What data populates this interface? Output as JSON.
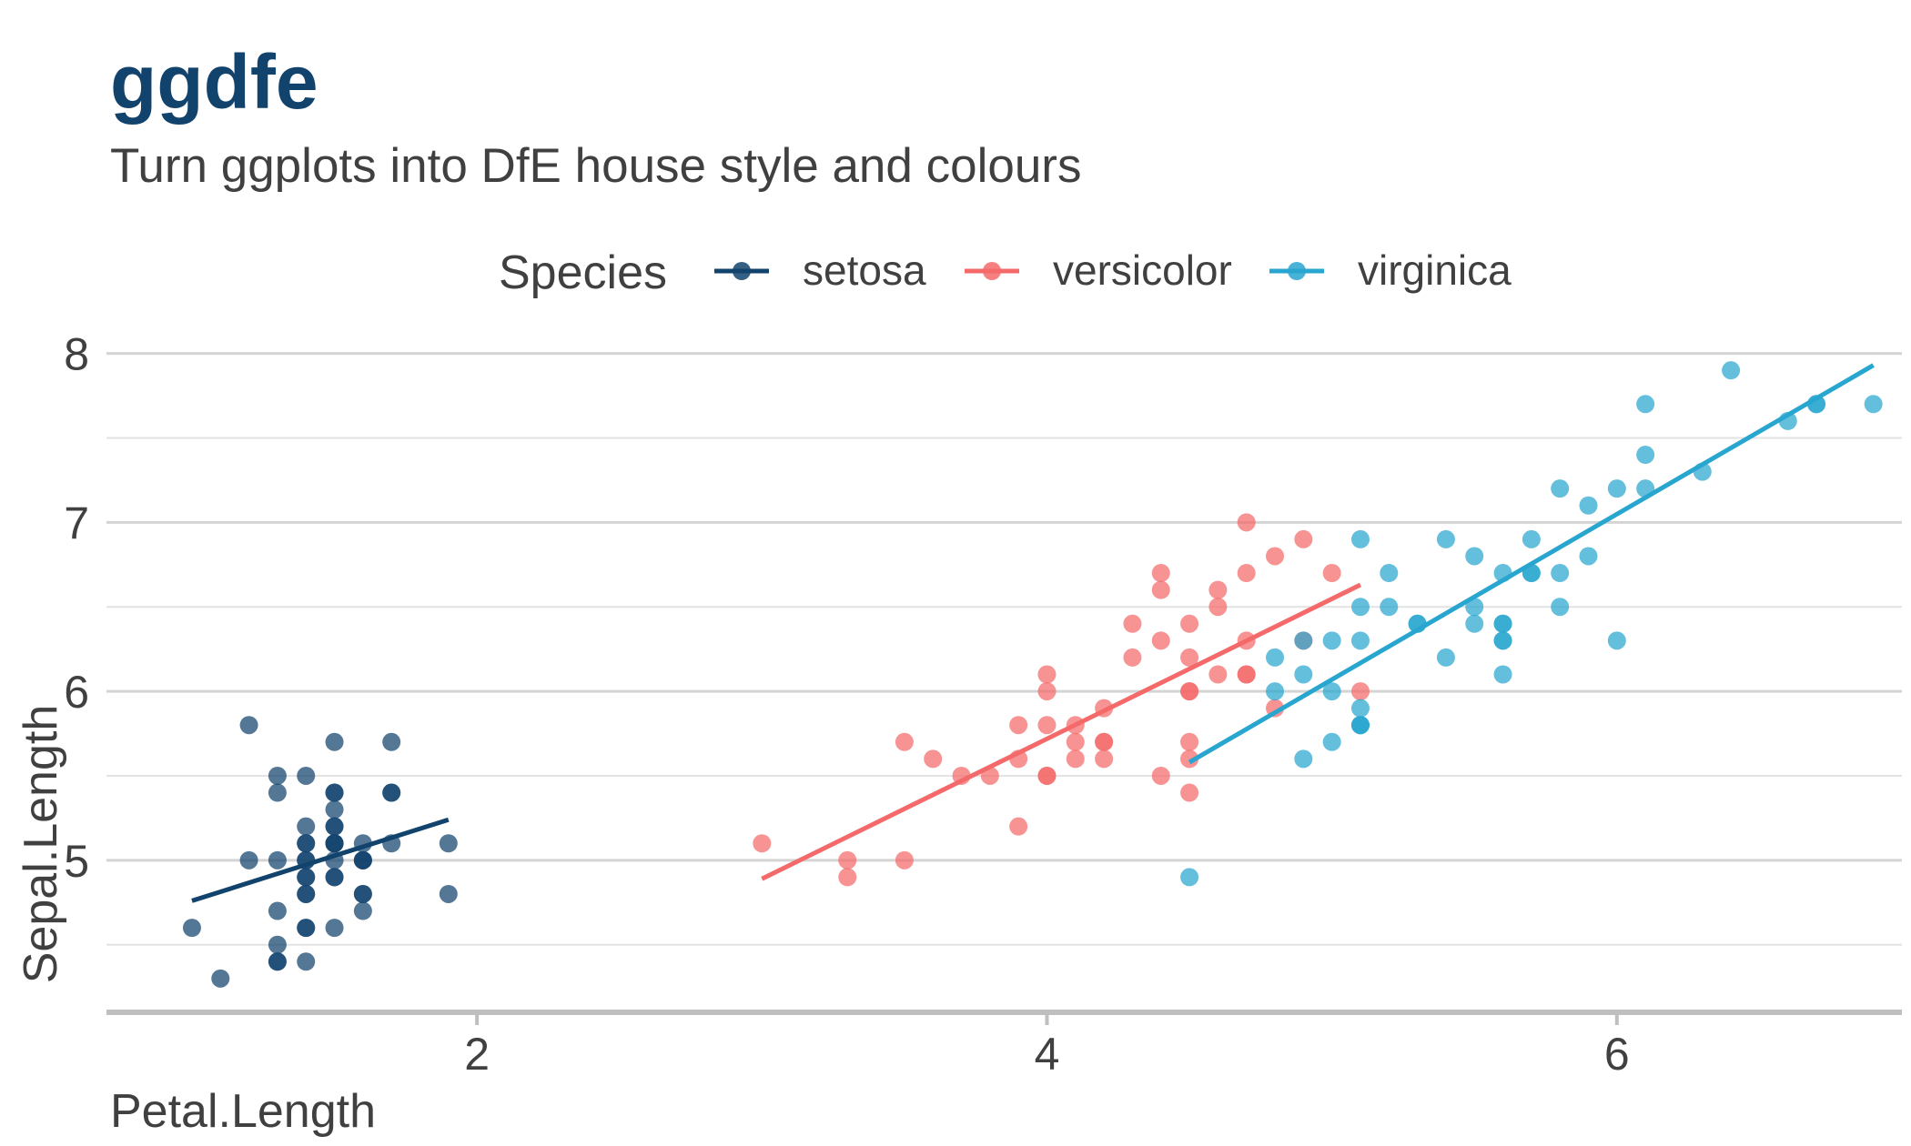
{
  "title": "ggdfe",
  "subtitle": "Turn ggplots into DfE house style and colours",
  "chart_data": {
    "type": "scatter",
    "xlabel": "Petal.Length",
    "ylabel": "Sepal.Length",
    "xlim": [
      0.7,
      7.0
    ],
    "ylim": [
      4.1,
      8.1
    ],
    "x_ticks": [
      2,
      4,
      6
    ],
    "y_ticks": [
      5,
      6,
      7,
      8
    ],
    "grid": "horizontal major and minor",
    "legend": {
      "title": "Species",
      "position": "top"
    },
    "trend_lines": "linear fit per species",
    "series": [
      {
        "name": "setosa",
        "color": "#12436d",
        "points": [
          [
            1.4,
            5.1
          ],
          [
            1.4,
            4.9
          ],
          [
            1.3,
            4.7
          ],
          [
            1.5,
            4.6
          ],
          [
            1.4,
            5.0
          ],
          [
            1.7,
            5.4
          ],
          [
            1.4,
            4.6
          ],
          [
            1.5,
            5.0
          ],
          [
            1.4,
            4.4
          ],
          [
            1.5,
            4.9
          ],
          [
            1.5,
            5.4
          ],
          [
            1.6,
            4.8
          ],
          [
            1.4,
            4.8
          ],
          [
            1.1,
            4.3
          ],
          [
            1.2,
            5.8
          ],
          [
            1.5,
            5.7
          ],
          [
            1.3,
            5.4
          ],
          [
            1.4,
            5.1
          ],
          [
            1.7,
            5.7
          ],
          [
            1.5,
            5.1
          ],
          [
            1.7,
            5.4
          ],
          [
            1.5,
            5.1
          ],
          [
            1.0,
            4.6
          ],
          [
            1.7,
            5.1
          ],
          [
            1.9,
            4.8
          ],
          [
            1.6,
            5.0
          ],
          [
            1.6,
            5.0
          ],
          [
            1.5,
            5.2
          ],
          [
            1.4,
            5.2
          ],
          [
            1.6,
            4.7
          ],
          [
            1.6,
            4.8
          ],
          [
            1.5,
            5.4
          ],
          [
            1.5,
            5.2
          ],
          [
            1.4,
            5.5
          ],
          [
            1.5,
            4.9
          ],
          [
            1.2,
            5.0
          ],
          [
            1.3,
            5.5
          ],
          [
            1.4,
            4.9
          ],
          [
            1.3,
            4.4
          ],
          [
            1.5,
            5.1
          ],
          [
            1.3,
            5.0
          ],
          [
            1.3,
            4.5
          ],
          [
            1.3,
            4.4
          ],
          [
            1.6,
            5.0
          ],
          [
            1.9,
            5.1
          ],
          [
            1.4,
            4.8
          ],
          [
            1.6,
            5.1
          ],
          [
            1.4,
            4.6
          ],
          [
            1.5,
            5.3
          ],
          [
            1.4,
            5.0
          ]
        ],
        "fit": [
          [
            1.0,
            4.76
          ],
          [
            1.9,
            5.24
          ]
        ]
      },
      {
        "name": "versicolor",
        "color": "#f46a6a",
        "points": [
          [
            4.7,
            7.0
          ],
          [
            4.5,
            6.4
          ],
          [
            4.9,
            6.9
          ],
          [
            4.0,
            5.5
          ],
          [
            4.6,
            6.5
          ],
          [
            4.5,
            5.7
          ],
          [
            4.7,
            6.3
          ],
          [
            3.3,
            4.9
          ],
          [
            4.6,
            6.6
          ],
          [
            3.9,
            5.2
          ],
          [
            3.5,
            5.0
          ],
          [
            4.2,
            5.9
          ],
          [
            4.0,
            6.0
          ],
          [
            4.7,
            6.1
          ],
          [
            3.6,
            5.6
          ],
          [
            4.4,
            6.7
          ],
          [
            4.5,
            5.6
          ],
          [
            4.1,
            5.8
          ],
          [
            4.5,
            6.2
          ],
          [
            3.9,
            5.6
          ],
          [
            4.8,
            5.9
          ],
          [
            4.0,
            6.1
          ],
          [
            4.9,
            6.3
          ],
          [
            4.7,
            6.1
          ],
          [
            4.3,
            6.4
          ],
          [
            4.4,
            6.6
          ],
          [
            4.8,
            6.8
          ],
          [
            5.0,
            6.7
          ],
          [
            4.5,
            6.0
          ],
          [
            3.5,
            5.7
          ],
          [
            3.8,
            5.5
          ],
          [
            3.7,
            5.5
          ],
          [
            3.9,
            5.8
          ],
          [
            5.1,
            6.0
          ],
          [
            4.5,
            5.4
          ],
          [
            4.5,
            6.0
          ],
          [
            4.7,
            6.7
          ],
          [
            4.4,
            6.3
          ],
          [
            4.1,
            5.6
          ],
          [
            4.0,
            5.5
          ],
          [
            4.4,
            5.5
          ],
          [
            4.6,
            6.1
          ],
          [
            4.0,
            5.8
          ],
          [
            3.3,
            5.0
          ],
          [
            4.2,
            5.6
          ],
          [
            4.2,
            5.7
          ],
          [
            4.2,
            5.7
          ],
          [
            4.3,
            6.2
          ],
          [
            3.0,
            5.1
          ],
          [
            4.1,
            5.7
          ]
        ],
        "fit": [
          [
            3.0,
            4.89
          ],
          [
            5.1,
            6.63
          ]
        ]
      },
      {
        "name": "virginica",
        "color": "#28a6cf",
        "points": [
          [
            6.0,
            6.3
          ],
          [
            5.1,
            5.8
          ],
          [
            5.9,
            7.1
          ],
          [
            5.6,
            6.3
          ],
          [
            5.8,
            6.5
          ],
          [
            6.6,
            7.6
          ],
          [
            4.5,
            4.9
          ],
          [
            6.3,
            7.3
          ],
          [
            5.8,
            6.7
          ],
          [
            6.1,
            7.2
          ],
          [
            5.1,
            6.5
          ],
          [
            5.3,
            6.4
          ],
          [
            5.5,
            6.8
          ],
          [
            5.0,
            5.7
          ],
          [
            5.1,
            5.8
          ],
          [
            5.3,
            6.4
          ],
          [
            5.5,
            6.5
          ],
          [
            6.7,
            7.7
          ],
          [
            6.9,
            7.7
          ],
          [
            5.0,
            6.0
          ],
          [
            5.7,
            6.9
          ],
          [
            4.9,
            5.6
          ],
          [
            6.7,
            7.7
          ],
          [
            4.9,
            6.3
          ],
          [
            5.7,
            6.7
          ],
          [
            6.0,
            7.2
          ],
          [
            4.8,
            6.2
          ],
          [
            4.9,
            6.1
          ],
          [
            5.6,
            6.4
          ],
          [
            5.8,
            7.2
          ],
          [
            6.1,
            7.4
          ],
          [
            6.4,
            7.9
          ],
          [
            5.6,
            6.4
          ],
          [
            5.1,
            6.3
          ],
          [
            5.6,
            6.1
          ],
          [
            6.1,
            7.7
          ],
          [
            5.6,
            6.3
          ],
          [
            5.5,
            6.4
          ],
          [
            4.8,
            6.0
          ],
          [
            5.4,
            6.9
          ],
          [
            5.6,
            6.7
          ],
          [
            5.1,
            6.9
          ],
          [
            5.1,
            5.8
          ],
          [
            5.9,
            6.8
          ],
          [
            5.7,
            6.7
          ],
          [
            5.2,
            6.7
          ],
          [
            5.0,
            6.3
          ],
          [
            5.2,
            6.5
          ],
          [
            5.4,
            6.2
          ],
          [
            5.1,
            5.9
          ]
        ],
        "fit": [
          [
            4.5,
            5.58
          ],
          [
            6.9,
            7.93
          ]
        ]
      }
    ]
  }
}
